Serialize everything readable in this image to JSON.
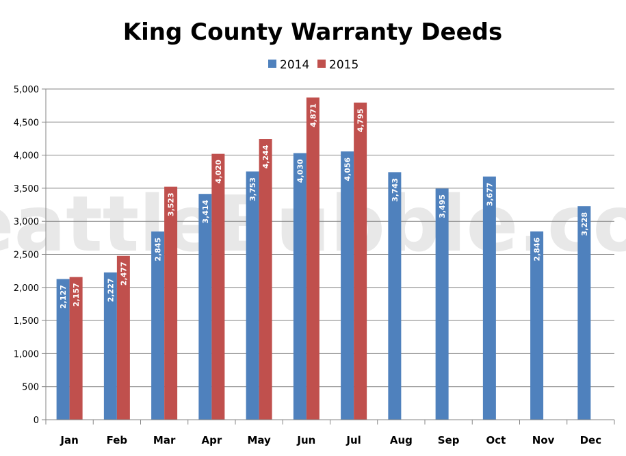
{
  "chart_data": {
    "type": "bar",
    "title": "King County Warranty Deeds",
    "watermark": "SeattleBubble.com",
    "categories": [
      "Jan",
      "Feb",
      "Mar",
      "Apr",
      "May",
      "Jun",
      "Jul",
      "Aug",
      "Sep",
      "Oct",
      "Nov",
      "Dec"
    ],
    "series": [
      {
        "name": "2014",
        "color": "#4f81bd",
        "values": [
          2127,
          2227,
          2845,
          3414,
          3753,
          4030,
          4056,
          3743,
          3495,
          3677,
          2846,
          3228
        ],
        "labels": [
          "2,127",
          "2,227",
          "2,845",
          "3,414",
          "3,753",
          "4,030",
          "4,056",
          "3,743",
          "3,495",
          "3,677",
          "2,846",
          "3,228"
        ]
      },
      {
        "name": "2015",
        "color": "#c0504d",
        "values": [
          2157,
          2477,
          3523,
          4020,
          4244,
          4871,
          4795,
          null,
          null,
          null,
          null,
          null
        ],
        "labels": [
          "2,157",
          "2,477",
          "3,523",
          "4,020",
          "4,244",
          "4,871",
          "4,795",
          null,
          null,
          null,
          null,
          null
        ]
      }
    ],
    "ylim": [
      0,
      5000
    ],
    "yticks": [
      0,
      500,
      1000,
      1500,
      2000,
      2500,
      3000,
      3500,
      4000,
      4500,
      5000
    ],
    "ytick_labels": [
      "0",
      "500",
      "1,000",
      "1,500",
      "2,000",
      "2,500",
      "3,000",
      "3,500",
      "4,000",
      "4,500",
      "5,000"
    ],
    "xlabel": "",
    "ylabel": "",
    "grid": true,
    "legend": "top-center",
    "colors": {
      "grid": "#868686",
      "axis": "#868686",
      "watermark": "#d9d9d9"
    }
  }
}
